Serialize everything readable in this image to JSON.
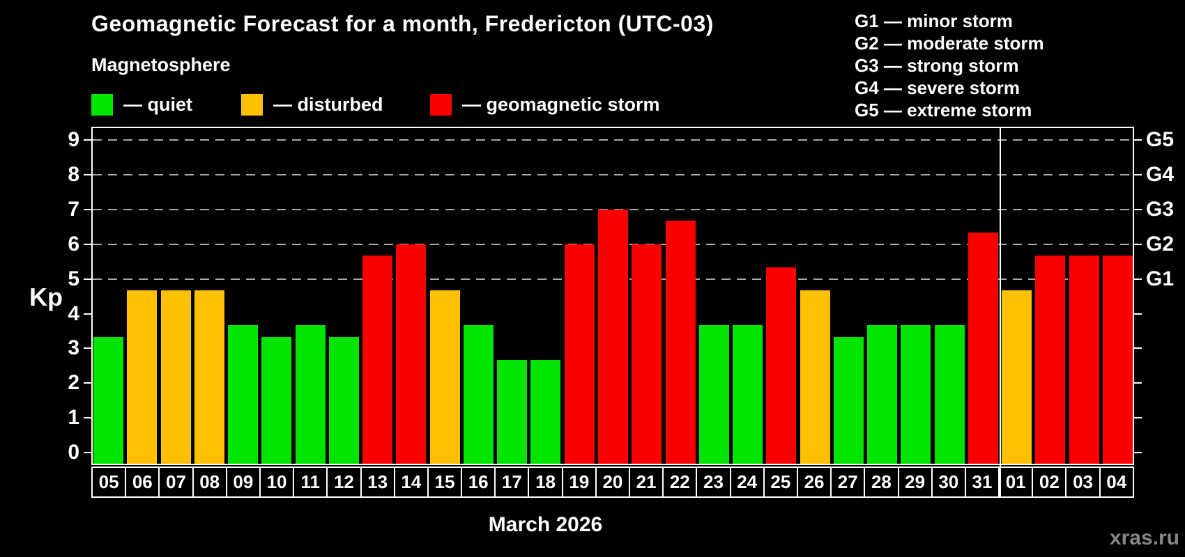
{
  "header": {
    "title": "Geomagnetic Forecast for a month, Fredericton (UTC-03)",
    "subtitle": "Magnetosphere"
  },
  "legend": {
    "items": [
      {
        "key": "quiet",
        "label": "— quiet",
        "color": "#00e400"
      },
      {
        "key": "disturbed",
        "label": "— disturbed",
        "color": "#ffc000"
      },
      {
        "key": "storm",
        "label": "— geomagnetic storm",
        "color": "#fb0000"
      }
    ]
  },
  "storm_scale_legend": {
    "items": [
      "G1 — minor storm",
      "G2 — moderate storm",
      "G3 — strong storm",
      "G4 — severe storm",
      "G5 — extreme storm"
    ]
  },
  "axes": {
    "y_label": "Kp",
    "y_ticks": [
      0,
      1,
      2,
      3,
      4,
      5,
      6,
      7,
      8,
      9
    ],
    "right_axis_labels": [
      {
        "kp": 5,
        "label": "G1"
      },
      {
        "kp": 6,
        "label": "G2"
      },
      {
        "kp": 7,
        "label": "G3"
      },
      {
        "kp": 8,
        "label": "G4"
      },
      {
        "kp": 9,
        "label": "G5"
      }
    ],
    "x_axis_title": "March 2026"
  },
  "watermark": "xras.ru",
  "chart_data": {
    "type": "bar",
    "title": "Geomagnetic Forecast for a month, Fredericton (UTC-03)",
    "xlabel": "March 2026",
    "ylabel": "Kp",
    "ylim": [
      0,
      9
    ],
    "grid_kp_levels": [
      5,
      6,
      7,
      8,
      9
    ],
    "legend_position": "top-left",
    "month_boundary_index": 27,
    "categories": [
      "05",
      "06",
      "07",
      "08",
      "09",
      "10",
      "11",
      "12",
      "13",
      "14",
      "15",
      "16",
      "17",
      "18",
      "19",
      "20",
      "21",
      "22",
      "23",
      "24",
      "25",
      "26",
      "27",
      "28",
      "29",
      "30",
      "31",
      "01",
      "02",
      "03",
      "04"
    ],
    "values": [
      3.33,
      4.67,
      4.67,
      4.67,
      3.67,
      3.33,
      3.67,
      3.33,
      5.67,
      6.0,
      4.67,
      3.67,
      2.67,
      2.67,
      6.0,
      7.0,
      6.0,
      6.67,
      3.67,
      3.67,
      5.33,
      4.67,
      3.33,
      3.67,
      3.67,
      3.67,
      6.33,
      4.67,
      5.67,
      5.67,
      5.67
    ],
    "statuses": [
      "quiet",
      "disturbed",
      "disturbed",
      "disturbed",
      "quiet",
      "quiet",
      "quiet",
      "quiet",
      "storm",
      "storm",
      "disturbed",
      "quiet",
      "quiet",
      "quiet",
      "storm",
      "storm",
      "storm",
      "storm",
      "quiet",
      "quiet",
      "storm",
      "disturbed",
      "quiet",
      "quiet",
      "quiet",
      "quiet",
      "storm",
      "disturbed",
      "storm",
      "storm",
      "storm"
    ],
    "colors": {
      "quiet": "#00e400",
      "disturbed": "#ffc000",
      "storm": "#fb0000"
    }
  }
}
